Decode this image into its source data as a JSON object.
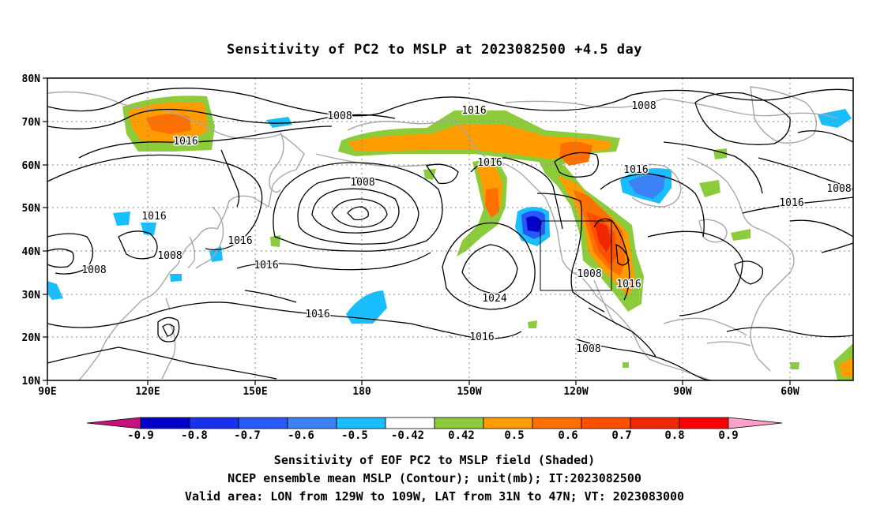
{
  "title": "Sensitivity of PC2 to MSLP at 2023082500 +4.5 day",
  "axes": {
    "lat_labels": [
      "80N",
      "70N",
      "60N",
      "50N",
      "40N",
      "30N",
      "20N",
      "10N"
    ],
    "lon_labels": [
      "90E",
      "120E",
      "150E",
      "180",
      "150W",
      "120W",
      "90W",
      "60W"
    ]
  },
  "contour_labels": [
    "1008",
    "1016",
    "1016",
    "1016",
    "1008",
    "1016",
    "1008",
    "1016",
    "1008",
    "1016",
    "1008",
    "1016",
    "1024",
    "1016",
    "1016",
    "1008",
    "1016",
    "1008",
    "1016",
    "1016",
    "1016",
    "1008",
    "1008"
  ],
  "colorbar": {
    "colors": [
      "#c8107e",
      "#0000c8",
      "#1932f0",
      "#2858f8",
      "#3c82f5",
      "#19beff",
      "#ffffff",
      "#8ccc3c",
      "#ff9c00",
      "#ff7000",
      "#ff5000",
      "#f02800",
      "#ff0000",
      "#ffa0c8"
    ],
    "labels": [
      "-0.9",
      "-0.8",
      "-0.7",
      "-0.6",
      "-0.5",
      "-0.42",
      "0.42",
      "0.5",
      "0.6",
      "0.7",
      "0.8",
      "0.9"
    ]
  },
  "caption": {
    "line1": "Sensitivity of EOF PC2 to MSLP field (Shaded)",
    "line2": "NCEP ensemble mean MSLP (Contour); unit(mb); IT:2023082500",
    "line3": "Valid area: LON from 129W to 109W, LAT from 31N to 47N; VT: 2023083000"
  }
}
